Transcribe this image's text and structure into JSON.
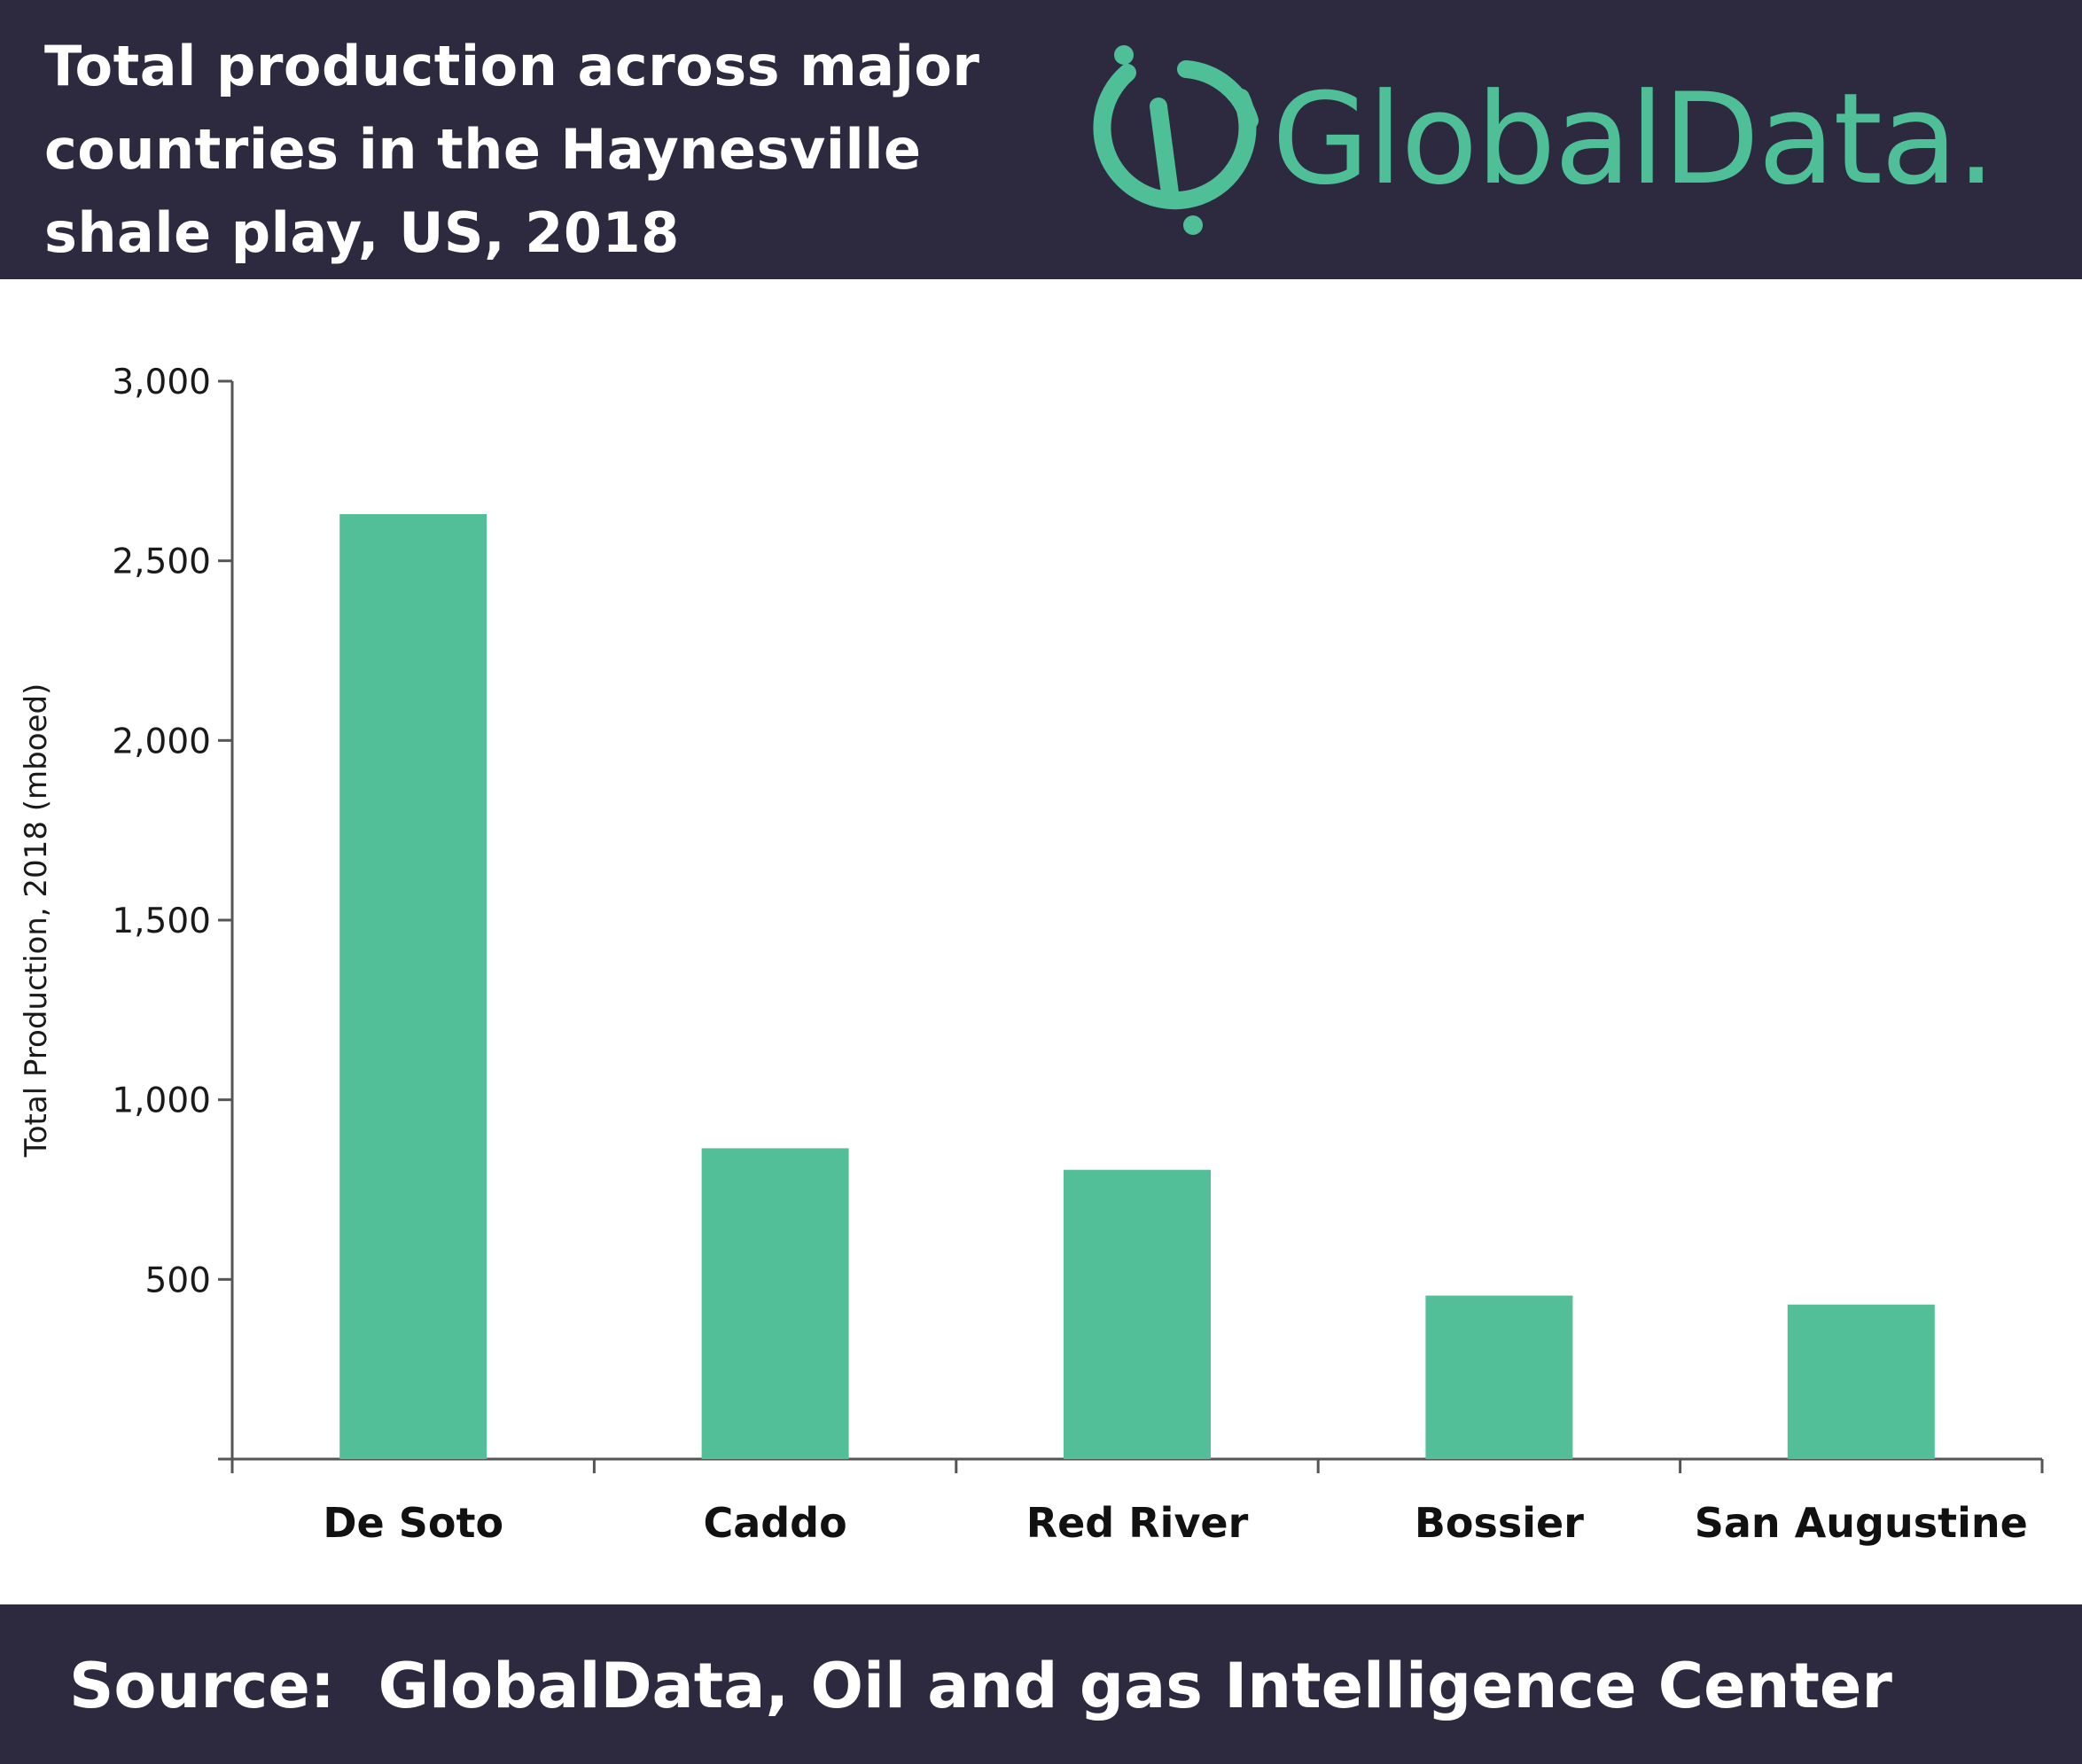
{
  "header": {
    "title": "Total production across major\ncountries in the Haynesville\nshale play, US, 2018",
    "logo_text": "GlobalData."
  },
  "footer": {
    "source": "Source:  GlobalData, Oil and gas Intelligence Center"
  },
  "colors": {
    "header_bg": "#2d2a3f",
    "bar": "#52bf99",
    "logo": "#4fbf98",
    "axis": "#555555"
  },
  "chart_data": {
    "type": "bar",
    "title": "Total production across major countries in the Haynesville shale play, US, 2018",
    "xlabel": "",
    "ylabel": "Total Production, 2018 (mboed)",
    "categories": [
      "De Soto",
      "Caddo",
      "Red River",
      "Bossier",
      "San Augustine"
    ],
    "values": [
      2630,
      865,
      805,
      455,
      430
    ],
    "ylim": [
      0,
      3000
    ],
    "yticks": [
      500,
      1000,
      1500,
      2000,
      2500,
      3000
    ],
    "ytick_labels": [
      "500",
      "1,000",
      "1,500",
      "2,000",
      "2,500",
      "3,000"
    ],
    "grid": false,
    "legend": "none"
  }
}
